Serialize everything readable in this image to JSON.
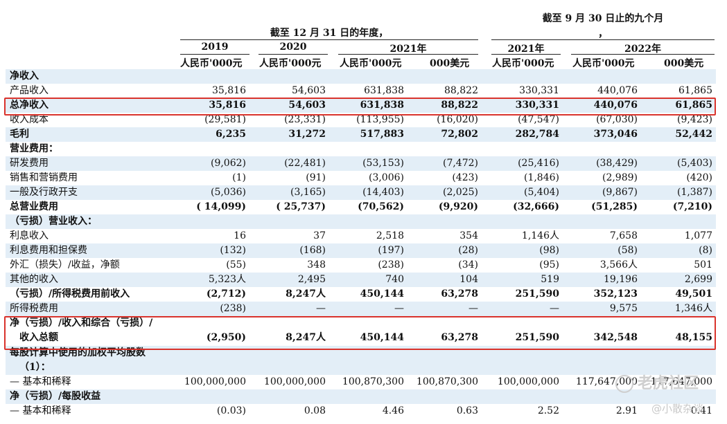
{
  "header": {
    "fy_title": "截至 12 月 31 日的年度，",
    "nine_title": "截至 9 月 30 日止的九个月",
    "nine_comma": "，",
    "years": [
      "2019",
      "2020",
      "2021年",
      "2021年",
      "2022年"
    ],
    "currencies": [
      "人民币'000元",
      "人民币'000元",
      "人民币'000元",
      "000美元",
      "人民币'000元",
      "人民币'000元",
      "000美元"
    ]
  },
  "rows": [
    {
      "label": "净收入",
      "bold": true,
      "values": []
    },
    {
      "label": "产品收入",
      "bold": false,
      "values": [
        "35,816",
        "54,603",
        "631,838",
        "88,822",
        "330,331",
        "440,076",
        "61,865"
      ]
    },
    {
      "label": "总净收入",
      "bold": true,
      "values": [
        "35,816",
        "54,603",
        "631,838",
        "88,822",
        "330,331",
        "440,076",
        "61,865"
      ]
    },
    {
      "label": "收入成本",
      "bold": false,
      "values": [
        "(29,581)",
        "(23,331)",
        "(113,955)",
        "(16,020)",
        "(47,547)",
        "(67,030)",
        "(9,423)"
      ]
    },
    {
      "label": "毛利",
      "bold": true,
      "values": [
        "6,235",
        "31,272",
        "517,883",
        "72,802",
        "282,784",
        "373,046",
        "52,442"
      ]
    },
    {
      "label": "营业费用：",
      "bold": true,
      "values": []
    },
    {
      "label": "研发费用",
      "bold": false,
      "values": [
        "(9,062)",
        "(22,481)",
        "(53,153)",
        "(7,472)",
        "(25,416)",
        "(38,429)",
        "(5,403)"
      ]
    },
    {
      "label": "销售和营销费用",
      "bold": false,
      "values": [
        "(1)",
        "(91)",
        "(3,006)",
        "(423)",
        "(1,846)",
        "(2,989)",
        "(420)"
      ]
    },
    {
      "label": "一般及行政开支",
      "bold": false,
      "values": [
        "(5,036)",
        "(3,165)",
        "(14,403)",
        "(2,025)",
        "(5,404)",
        "(9,867)",
        "(1,387)"
      ]
    },
    {
      "label": "总营业费用",
      "bold": true,
      "values": [
        "( 14,099)",
        "( 25,737)",
        "(70,562)",
        "(9,920)",
        "(32,666)",
        "(51,285)",
        "(7,210)"
      ]
    },
    {
      "label": "（亏损）营业收入：",
      "bold": true,
      "values": []
    },
    {
      "label": "利息收入",
      "bold": false,
      "values": [
        "16",
        "37",
        "2,518",
        "354",
        "1,146人",
        "7,658",
        "1,077"
      ]
    },
    {
      "label": "利息费用和担保费",
      "bold": false,
      "values": [
        "(132)",
        "(168)",
        "(197)",
        "(28)",
        "(98)",
        "(58)",
        "(8)"
      ]
    },
    {
      "label": "外汇（损失）/收益，净额",
      "bold": false,
      "values": [
        "(55)",
        "348",
        "(238)",
        "(34)",
        "(95)",
        "3,566人",
        "501"
      ]
    },
    {
      "label": "其他的收入",
      "bold": false,
      "values": [
        "5,323人",
        "2,495",
        "740",
        "104",
        "519",
        "19,196",
        "2,699"
      ]
    },
    {
      "label": "（亏损）/所得税费用前收入",
      "bold": true,
      "values": [
        "(2,712)",
        "8,247人",
        "450,144",
        "63,278",
        "251,590",
        "352,123",
        "49,501"
      ]
    },
    {
      "label": "所得税费用",
      "bold": false,
      "values": [
        "(238)",
        "—",
        "—",
        "—",
        "—",
        "9,575",
        "1,346人"
      ]
    },
    {
      "label": "净（亏损）/收入和综合（亏损）/",
      "label2": "收入总额",
      "bold": true,
      "values": [
        "(2,950)",
        "8,247人",
        "450,144",
        "63,278",
        "251,590",
        "342,548",
        "48,155"
      ]
    },
    {
      "label": "每股计算中使用的加权平均股数",
      "label2": "（1）：",
      "bold": true,
      "values": []
    },
    {
      "label": "— 基本和稀释",
      "bold": false,
      "values": [
        "100,000,000",
        "100,000,000",
        "100,870,300",
        "100,870,300",
        "100,000,000",
        "117,647,000",
        "117,647,000"
      ]
    },
    {
      "label": "净（亏损）/每股收益",
      "bold": true,
      "values": []
    },
    {
      "label": "— 基本和稀释",
      "bold": false,
      "values": [
        "(0.03)",
        "0.08",
        "4.46",
        "0.63",
        "2.52",
        "2.91",
        "0.41"
      ]
    }
  ],
  "watermark": {
    "brand": "老虎社区",
    "author": "@小散杂谈"
  },
  "colors": {
    "highlight": "#d9322b",
    "shade": "#e3eef7"
  }
}
